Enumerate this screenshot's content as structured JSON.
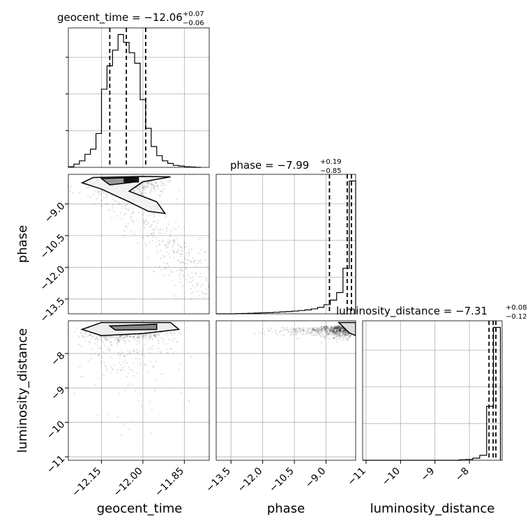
{
  "chart_data": {
    "type": "corner",
    "parameters": [
      "geocent_time",
      "phase",
      "luminosity_distance"
    ],
    "titles": [
      {
        "name": "geocent_time",
        "median": "−12.06",
        "plus": "+0.07",
        "minus": "−0.06"
      },
      {
        "name": "phase",
        "median": "−7.99",
        "plus": "+0.19",
        "minus": "−0.85"
      },
      {
        "name": "luminosity_distance",
        "median": "−7.31",
        "plus": "+0.08",
        "minus": "−0.12"
      }
    ],
    "xlabels": [
      "geocent_time",
      "phase",
      "luminosity_distance"
    ],
    "ylabels": [
      "phase",
      "luminosity_distance"
    ],
    "ticks": {
      "geocent_time": {
        "values": [
          -12.15,
          -12.0,
          -11.85
        ],
        "labels": [
          "−12.15",
          "−12.00",
          "−11.85"
        ]
      },
      "phase": {
        "values": [
          -13.5,
          -12.0,
          -10.5,
          -9.0
        ],
        "labels": [
          "−13.5",
          "−12.0",
          "−10.5",
          "−9.0"
        ]
      },
      "luminosity_distance": {
        "values": [
          -11,
          -10,
          -9,
          -8
        ],
        "labels": [
          "−11",
          "−10",
          "−9",
          "−8"
        ]
      }
    },
    "ranges": {
      "geocent_time": [
        -12.27,
        -11.76
      ],
      "phase": [
        -14.2,
        -7.6
      ],
      "luminosity_distance": [
        -11.1,
        -7.05
      ]
    },
    "quantiles": {
      "geocent_time": [
        -12.12,
        -12.06,
        -11.99
      ],
      "phase": [
        -8.84,
        -8.0,
        -7.8
      ],
      "luminosity_distance": [
        -7.43,
        -7.31,
        -7.23
      ]
    },
    "histograms": {
      "geocent_time": {
        "edges": [
          -12.27,
          -12.25,
          -12.23,
          -12.21,
          -12.19,
          -12.17,
          -12.15,
          -12.13,
          -12.11,
          -12.09,
          -12.07,
          -12.05,
          -12.03,
          -12.01,
          -11.99,
          -11.97,
          -11.95,
          -11.93,
          -11.91,
          -11.89,
          -11.87,
          -11.85,
          -11.83,
          -11.81,
          -11.79
        ],
        "counts": [
          0.5,
          2.5,
          5,
          10,
          14,
          26,
          60,
          78,
          90,
          102,
          96,
          88,
          80,
          52,
          30,
          16,
          9,
          5,
          3,
          1.5,
          1,
          0.5,
          0.3,
          0
        ]
      },
      "phase": {
        "edges": [
          -14.2,
          -13.9,
          -13.6,
          -13.3,
          -13.0,
          -12.7,
          -12.4,
          -12.1,
          -11.8,
          -11.5,
          -11.2,
          -10.9,
          -10.6,
          -10.3,
          -10.0,
          -9.7,
          -9.4,
          -9.1,
          -8.8,
          -8.5,
          -8.2,
          -7.9,
          -7.6
        ],
        "counts": [
          0,
          0,
          0,
          0.3,
          0.5,
          0.7,
          1,
          1.3,
          1.6,
          2,
          2.5,
          3,
          3.6,
          4.3,
          5.2,
          6.5,
          8.5,
          12,
          18,
          28,
          60,
          175
        ]
      },
      "luminosity_distance": {
        "edges": [
          -11.1,
          -10.9,
          -10.7,
          -10.5,
          -10.3,
          -10.1,
          -9.9,
          -9.7,
          -9.5,
          -9.3,
          -9.1,
          -8.9,
          -8.7,
          -8.5,
          -8.3,
          -8.1,
          -7.9,
          -7.7,
          -7.5,
          -7.3,
          -7.1
        ],
        "counts": [
          0,
          0,
          0,
          0,
          0,
          0,
          0,
          0,
          0,
          0,
          0,
          0,
          0,
          0,
          0.5,
          1,
          2.5,
          6,
          65,
          160
        ]
      }
    },
    "grid": true,
    "y_ticks_on_first_histogram": 3
  }
}
